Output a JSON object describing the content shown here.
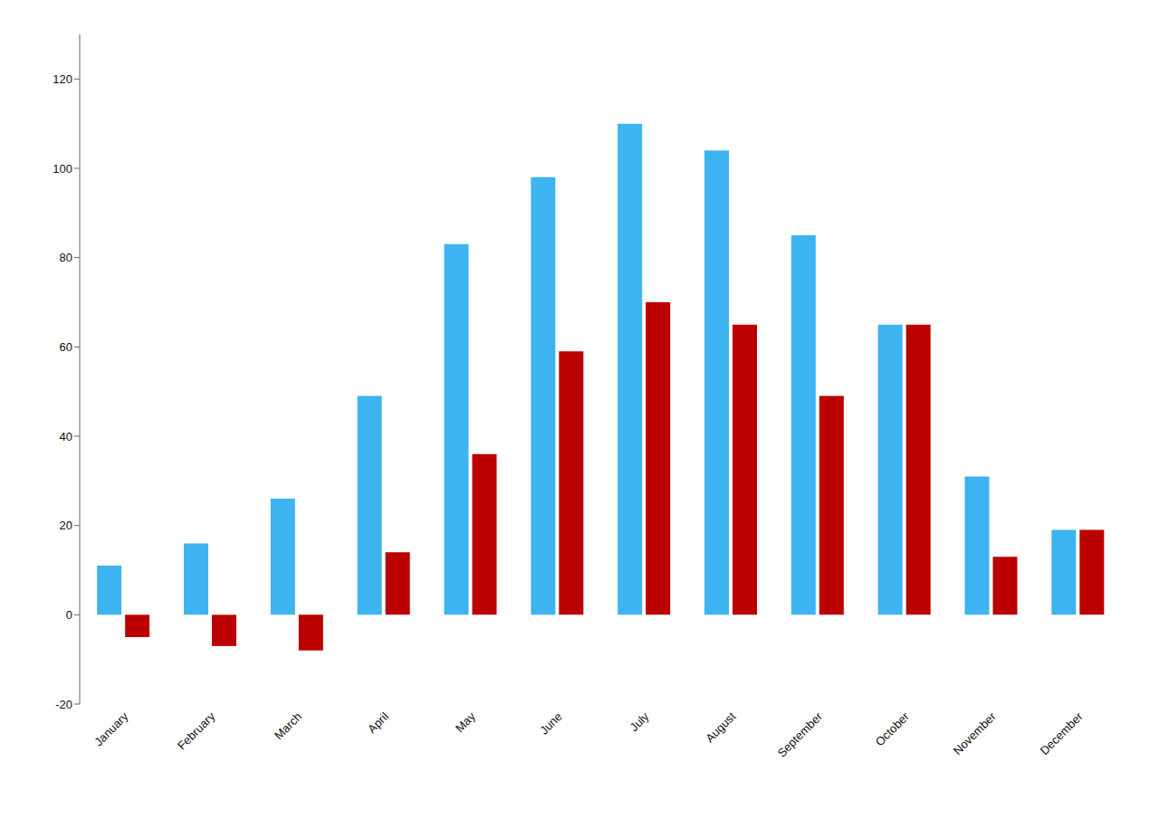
{
  "chart_data": {
    "type": "bar",
    "categories": [
      "January",
      "February",
      "March",
      "April",
      "May",
      "June",
      "July",
      "August",
      "September",
      "October",
      "November",
      "December"
    ],
    "series": [
      {
        "color": "#3db4f0",
        "values": [
          11,
          16,
          26,
          49,
          83,
          98,
          110,
          104,
          85,
          65,
          31,
          19
        ]
      },
      {
        "color": "#bb0000",
        "values": [
          -5,
          -7,
          -8,
          14,
          36,
          59,
          70,
          65,
          49,
          65,
          13,
          19
        ]
      }
    ],
    "ylim": [
      -20,
      130
    ],
    "yticks": [
      -20,
      0,
      20,
      40,
      60,
      80,
      100,
      120
    ],
    "grid": false
  }
}
